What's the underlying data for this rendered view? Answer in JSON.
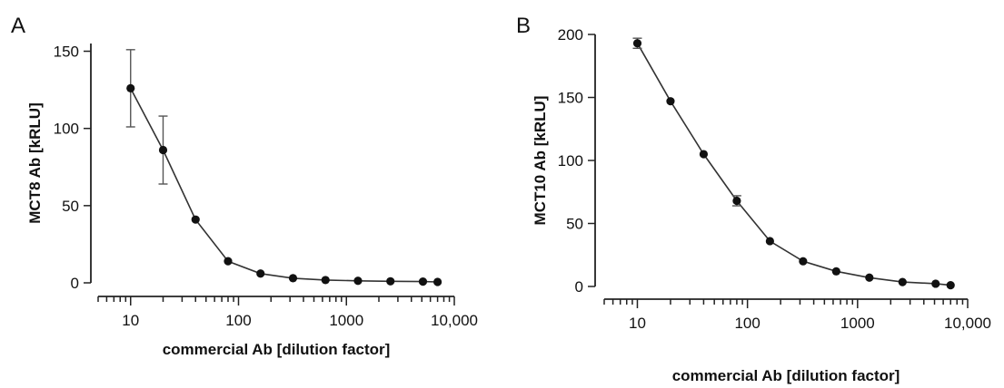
{
  "chart_data": [
    {
      "type": "line",
      "panel": "A",
      "xlabel": "commercial Ab [dilution factor]",
      "ylabel": "MCT8 Ab [kRLU]",
      "xscale": "log",
      "xlim": [
        5,
        10000
      ],
      "ylim": [
        0,
        155
      ],
      "xticks": [
        10,
        100,
        1000,
        10000
      ],
      "xtick_labels": [
        "10",
        "100",
        "1000",
        "10,000"
      ],
      "yticks": [
        0,
        50,
        100,
        150
      ],
      "ytick_labels": [
        "0",
        "50",
        "100",
        "150"
      ],
      "grid": false,
      "series": [
        {
          "x": [
            10,
            20,
            40,
            80,
            160,
            320,
            640,
            1280,
            2560,
            5120,
            7000
          ],
          "y": [
            126,
            86,
            41,
            14,
            6,
            3,
            1.8,
            1.3,
            1.0,
            0.8,
            0.6
          ],
          "error": [
            25,
            22,
            0,
            0,
            0,
            0,
            0,
            0,
            0,
            0,
            0
          ]
        }
      ]
    },
    {
      "type": "line",
      "panel": "B",
      "xlabel": "commercial Ab [dilution factor]",
      "ylabel": "MCT10 Ab [kRLU]",
      "xscale": "log",
      "xlim": [
        5,
        10000
      ],
      "ylim": [
        0,
        200
      ],
      "xticks": [
        10,
        100,
        1000,
        10000
      ],
      "xtick_labels": [
        "10",
        "100",
        "1000",
        "10,000"
      ],
      "yticks": [
        0,
        50,
        100,
        150,
        200
      ],
      "ytick_labels": [
        "0",
        "50",
        "100",
        "150",
        "200"
      ],
      "grid": false,
      "series": [
        {
          "x": [
            10,
            20,
            40,
            80,
            160,
            320,
            640,
            1280,
            2560,
            5120,
            7000
          ],
          "y": [
            193,
            147,
            105,
            68,
            36,
            20,
            12,
            7,
            3.5,
            2.2,
            1
          ],
          "error": [
            4,
            0,
            0,
            4,
            0,
            0,
            0,
            0,
            0,
            0,
            0
          ]
        }
      ]
    }
  ]
}
